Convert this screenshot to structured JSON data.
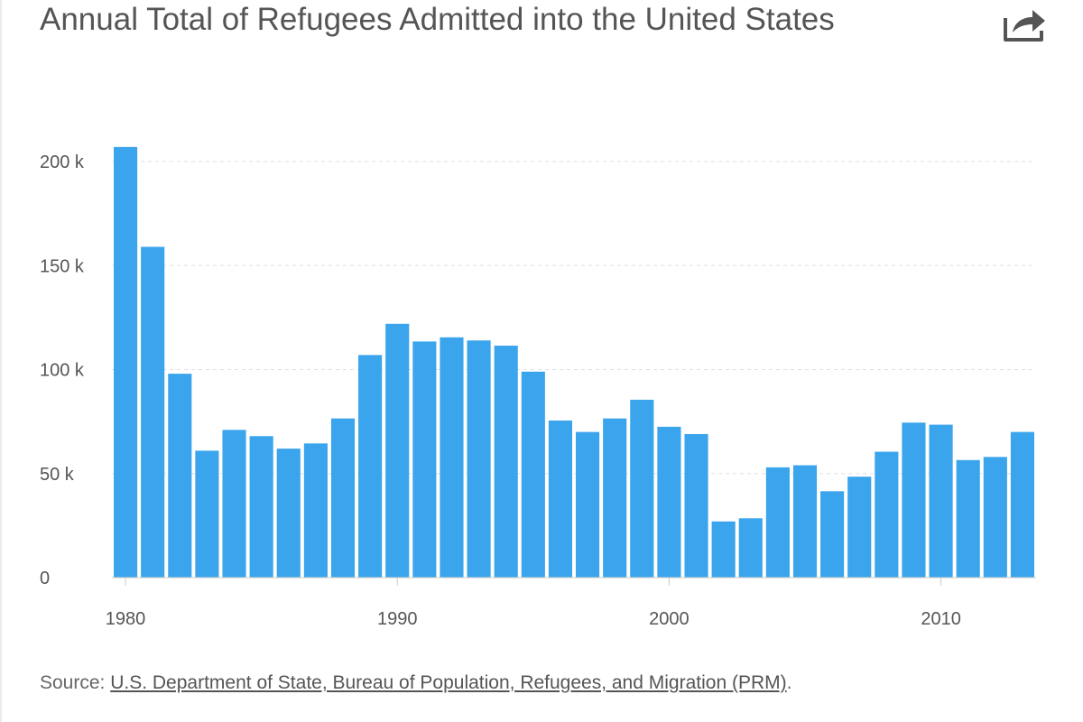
{
  "share_icon": "share-arrow-icon",
  "colors": {
    "bar": "#3aa4ec",
    "grid": "#e0e0e0",
    "axis": "#cccccc",
    "text": "#555555"
  },
  "source": {
    "prefix": "Source: ",
    "link_text": "U.S. Department of State, Bureau of Population, Refugees, and Migration (PRM)",
    "suffix": "."
  },
  "chart_data": {
    "type": "bar",
    "title": "Annual Total of Refugees Admitted into the United States",
    "xlabel": "",
    "ylabel": "",
    "x": [
      1980,
      1981,
      1982,
      1983,
      1984,
      1985,
      1986,
      1987,
      1988,
      1989,
      1990,
      1991,
      1992,
      1993,
      1994,
      1995,
      1996,
      1997,
      1998,
      1999,
      2000,
      2001,
      2002,
      2003,
      2004,
      2005,
      2006,
      2007,
      2008,
      2009,
      2010,
      2011,
      2012,
      2013
    ],
    "values": [
      207000,
      159000,
      98000,
      61000,
      71000,
      68000,
      62000,
      64500,
      76500,
      107000,
      122000,
      113500,
      115500,
      114000,
      111500,
      99000,
      75500,
      70000,
      76500,
      85500,
      72500,
      69000,
      27000,
      28500,
      53000,
      54000,
      41500,
      48500,
      60500,
      74500,
      73500,
      56500,
      58000,
      70000
    ],
    "yticks": [
      0,
      50000,
      100000,
      150000,
      200000
    ],
    "ytick_labels": [
      "0",
      "50 k",
      "100 k",
      "150 k",
      "200 k"
    ],
    "xticks": [
      1980,
      1990,
      2000,
      2010
    ],
    "xtick_labels": [
      "1980",
      "1990",
      "2000",
      "2010"
    ],
    "ylim": [
      0,
      210000
    ],
    "grid": true,
    "legend": "none"
  }
}
